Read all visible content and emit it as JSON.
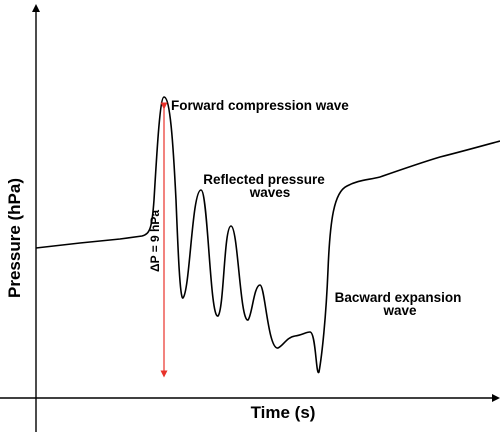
{
  "axes": {
    "x_title": "Time (s)",
    "y_title": "Pressure (hPa)"
  },
  "annotations": {
    "forward": "Forward compression wave",
    "reflected_line1": "Reflected pressure",
    "reflected_line2": "waves",
    "backward_line1": "Bacward expansion",
    "backward_line2": "wave",
    "delta_p": "ΔP = 9 hPa"
  },
  "colors": {
    "curve": "#000000",
    "axes": "#000000",
    "delta_arrow": "#e8312a"
  }
}
